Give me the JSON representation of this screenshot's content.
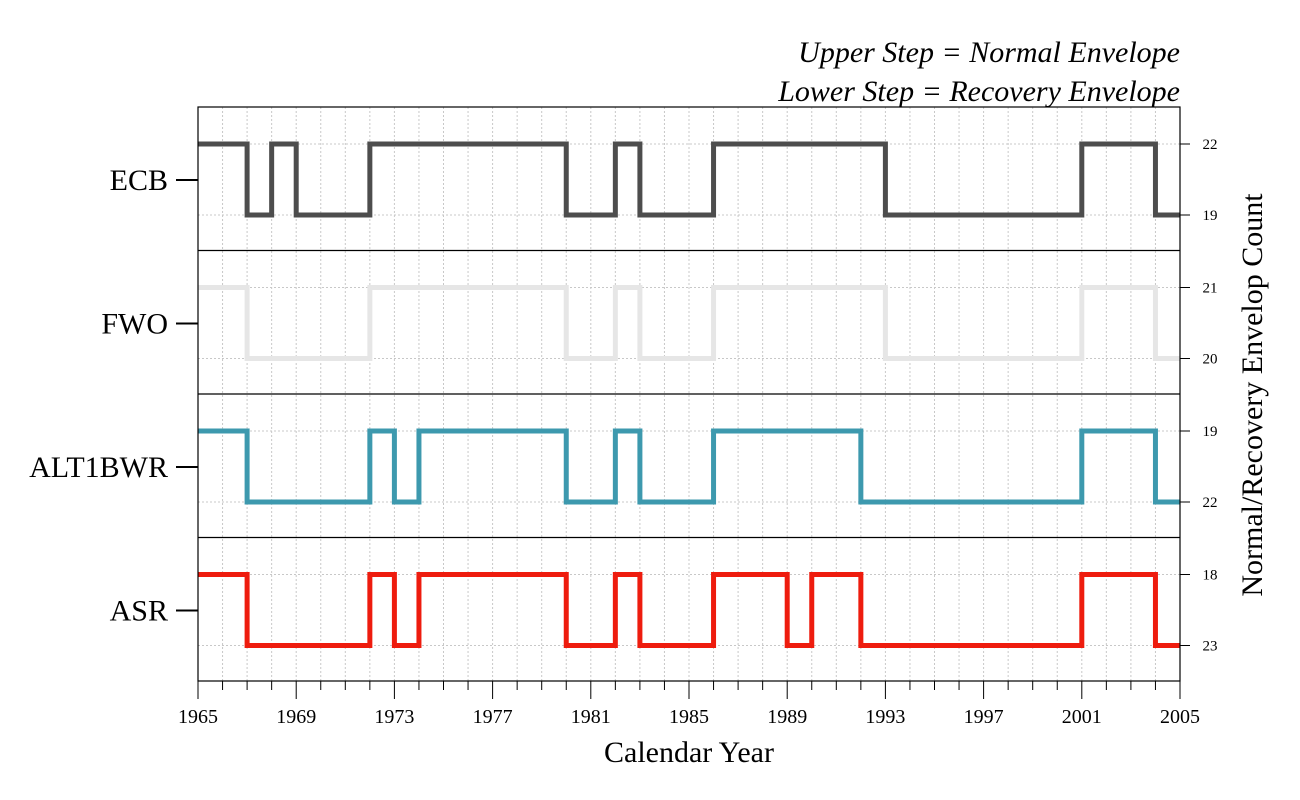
{
  "chart_data": {
    "type": "line",
    "step": true,
    "xlabel": "Calendar Year",
    "ylabel_right": "Normal/Recovery Envelop Count",
    "legend_lines": [
      "Upper Step = Normal Envelope",
      "Lower Step = Recovery Envelope"
    ],
    "legend_placement": "top-right",
    "xlim": [
      1965,
      2005
    ],
    "x_major_ticks": [
      1965,
      1969,
      1973,
      1977,
      1981,
      1985,
      1989,
      1993,
      1997,
      2001,
      2005
    ],
    "x_minor_step": 1,
    "grid": true,
    "series": [
      {
        "name": "ECB",
        "color": "#4d4d4d",
        "upper_count": 22,
        "lower_count": 19,
        "steps": [
          {
            "x": 1965,
            "level": "upper"
          },
          {
            "x": 1967,
            "level": "lower"
          },
          {
            "x": 1968,
            "level": "upper"
          },
          {
            "x": 1969,
            "level": "lower"
          },
          {
            "x": 1972,
            "level": "upper"
          },
          {
            "x": 1980,
            "level": "lower"
          },
          {
            "x": 1982,
            "level": "upper"
          },
          {
            "x": 1983,
            "level": "lower"
          },
          {
            "x": 1986,
            "level": "upper"
          },
          {
            "x": 1993,
            "level": "lower"
          },
          {
            "x": 2001,
            "level": "upper"
          },
          {
            "x": 2004,
            "level": "lower"
          },
          {
            "x": 2005,
            "level": "lower"
          }
        ]
      },
      {
        "name": "FWO",
        "color": "#e6e6e6",
        "upper_count": 21,
        "lower_count": 20,
        "steps": [
          {
            "x": 1965,
            "level": "upper"
          },
          {
            "x": 1967,
            "level": "lower"
          },
          {
            "x": 1972,
            "level": "upper"
          },
          {
            "x": 1980,
            "level": "lower"
          },
          {
            "x": 1982,
            "level": "upper"
          },
          {
            "x": 1983,
            "level": "lower"
          },
          {
            "x": 1986,
            "level": "upper"
          },
          {
            "x": 1993,
            "level": "lower"
          },
          {
            "x": 2001,
            "level": "upper"
          },
          {
            "x": 2004,
            "level": "lower"
          },
          {
            "x": 2005,
            "level": "lower"
          }
        ]
      },
      {
        "name": "ALT1BWR",
        "color": "#3d99ae",
        "upper_count": 19,
        "lower_count": 22,
        "steps": [
          {
            "x": 1965,
            "level": "upper"
          },
          {
            "x": 1967,
            "level": "lower"
          },
          {
            "x": 1972,
            "level": "upper"
          },
          {
            "x": 1973,
            "level": "lower"
          },
          {
            "x": 1974,
            "level": "upper"
          },
          {
            "x": 1980,
            "level": "lower"
          },
          {
            "x": 1982,
            "level": "upper"
          },
          {
            "x": 1983,
            "level": "lower"
          },
          {
            "x": 1986,
            "level": "upper"
          },
          {
            "x": 1992,
            "level": "lower"
          },
          {
            "x": 2001,
            "level": "upper"
          },
          {
            "x": 2004,
            "level": "lower"
          },
          {
            "x": 2005,
            "level": "lower"
          }
        ]
      },
      {
        "name": "ASR",
        "color": "#ee1c0e",
        "upper_count": 18,
        "lower_count": 23,
        "steps": [
          {
            "x": 1965,
            "level": "upper"
          },
          {
            "x": 1967,
            "level": "lower"
          },
          {
            "x": 1972,
            "level": "upper"
          },
          {
            "x": 1973,
            "level": "lower"
          },
          {
            "x": 1974,
            "level": "upper"
          },
          {
            "x": 1980,
            "level": "lower"
          },
          {
            "x": 1982,
            "level": "upper"
          },
          {
            "x": 1983,
            "level": "lower"
          },
          {
            "x": 1986,
            "level": "upper"
          },
          {
            "x": 1989,
            "level": "lower"
          },
          {
            "x": 1990,
            "level": "upper"
          },
          {
            "x": 1992,
            "level": "lower"
          },
          {
            "x": 2001,
            "level": "upper"
          },
          {
            "x": 2004,
            "level": "lower"
          },
          {
            "x": 2005,
            "level": "lower"
          }
        ]
      }
    ]
  }
}
